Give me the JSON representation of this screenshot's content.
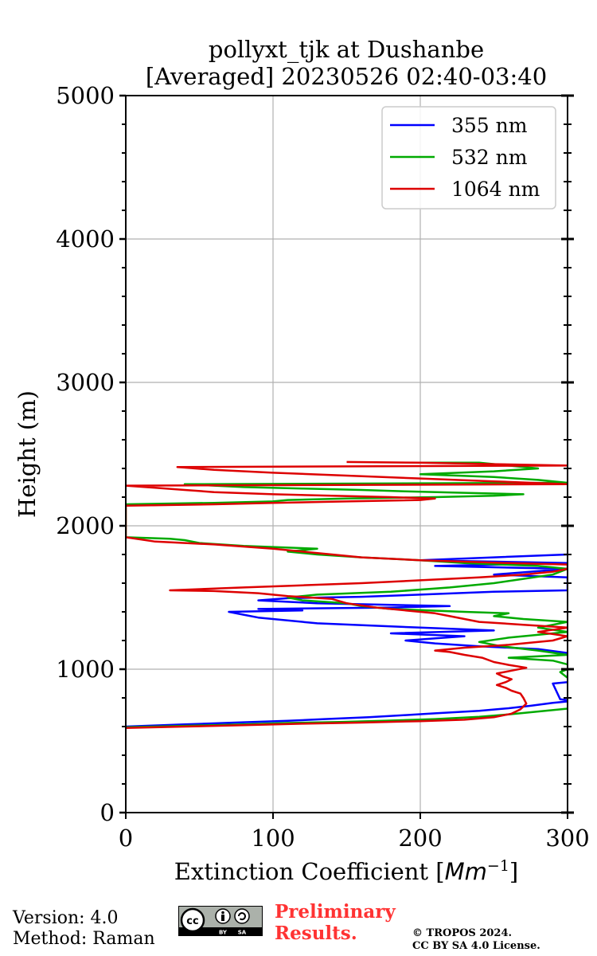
{
  "chart_data": {
    "type": "line",
    "title_line1": "pollyxt_tjk at Dushanbe",
    "title_line2": "[Averaged] 20230526 02:40-03:40",
    "xlabel_main": "Extinction Coefficient [",
    "xlabel_unit": "Mm",
    "xlabel_exp": "−1",
    "xlabel_close": "]",
    "ylabel": "Height (m)",
    "xlim": [
      0,
      300
    ],
    "ylim": [
      0,
      5000
    ],
    "xticks": [
      0,
      100,
      200,
      300
    ],
    "yticks": [
      0,
      1000,
      2000,
      3000,
      4000,
      5000
    ],
    "grid": true,
    "legend_position": "top-right",
    "series": [
      {
        "name": "355 nm",
        "color": "#0000ff",
        "points": [
          [
            0,
            600
          ],
          [
            40,
            615
          ],
          [
            80,
            630
          ],
          [
            110,
            640
          ],
          [
            135,
            652
          ],
          [
            165,
            665
          ],
          [
            190,
            680
          ],
          [
            210,
            692
          ],
          [
            240,
            710
          ],
          [
            260,
            728
          ],
          [
            275,
            745
          ],
          [
            290,
            765
          ],
          [
            305,
            780
          ],
          [
            295,
            790
          ],
          [
            290,
            900
          ],
          [
            310,
            920
          ],
          [
            300,
            960
          ],
          [
            310,
            1000
          ],
          [
            300,
            1050
          ],
          [
            310,
            1100
          ],
          [
            280,
            1140
          ],
          [
            240,
            1160
          ],
          [
            210,
            1180
          ],
          [
            190,
            1200
          ],
          [
            230,
            1230
          ],
          [
            180,
            1250
          ],
          [
            250,
            1270
          ],
          [
            200,
            1290
          ],
          [
            130,
            1320
          ],
          [
            90,
            1360
          ],
          [
            80,
            1380
          ],
          [
            70,
            1400
          ],
          [
            120,
            1410
          ],
          [
            90,
            1420
          ],
          [
            180,
            1430
          ],
          [
            220,
            1440
          ],
          [
            130,
            1460
          ],
          [
            90,
            1480
          ],
          [
            110,
            1495
          ],
          [
            160,
            1505
          ],
          [
            200,
            1520
          ],
          [
            250,
            1540
          ],
          [
            300,
            1550
          ],
          [
            300,
            1640
          ],
          [
            250,
            1660
          ],
          [
            300,
            1700
          ],
          [
            210,
            1720
          ],
          [
            300,
            1740
          ],
          [
            200,
            1760
          ],
          [
            250,
            1780
          ],
          [
            300,
            1800
          ]
        ]
      },
      {
        "name": "532 nm",
        "color": "#00aa00",
        "points": [
          [
            0,
            595
          ],
          [
            40,
            605
          ],
          [
            80,
            615
          ],
          [
            110,
            625
          ],
          [
            145,
            632
          ],
          [
            175,
            640
          ],
          [
            210,
            652
          ],
          [
            240,
            668
          ],
          [
            260,
            685
          ],
          [
            280,
            705
          ],
          [
            300,
            725
          ],
          [
            310,
            750
          ],
          [
            300,
            940
          ],
          [
            295,
            980
          ],
          [
            305,
            1020
          ],
          [
            290,
            1060
          ],
          [
            260,
            1080
          ],
          [
            300,
            1100
          ],
          [
            280,
            1130
          ],
          [
            255,
            1160
          ],
          [
            240,
            1190
          ],
          [
            260,
            1220
          ],
          [
            300,
            1260
          ],
          [
            280,
            1290
          ],
          [
            300,
            1330
          ],
          [
            270,
            1350
          ],
          [
            250,
            1370
          ],
          [
            260,
            1390
          ],
          [
            230,
            1400
          ],
          [
            180,
            1420
          ],
          [
            160,
            1440
          ],
          [
            150,
            1460
          ],
          [
            120,
            1480
          ],
          [
            110,
            1500
          ],
          [
            130,
            1520
          ],
          [
            180,
            1540
          ],
          [
            220,
            1570
          ],
          [
            250,
            1600
          ],
          [
            270,
            1630
          ],
          [
            290,
            1660
          ],
          [
            300,
            1700
          ],
          [
            280,
            1720
          ],
          [
            230,
            1740
          ],
          [
            200,
            1760
          ],
          [
            160,
            1780
          ],
          [
            130,
            1800
          ],
          [
            110,
            1820
          ],
          [
            130,
            1840
          ],
          [
            80,
            1860
          ],
          [
            50,
            1880
          ],
          [
            40,
            1900
          ],
          [
            30,
            1910
          ],
          [
            0,
            1920
          ],
          [
            0,
            2150
          ],
          [
            60,
            2160
          ],
          [
            100,
            2170
          ],
          [
            110,
            2180
          ],
          [
            150,
            2190
          ],
          [
            210,
            2200
          ],
          [
            250,
            2210
          ],
          [
            270,
            2220
          ],
          [
            230,
            2230
          ],
          [
            190,
            2240
          ],
          [
            160,
            2250
          ],
          [
            120,
            2260
          ],
          [
            80,
            2270
          ],
          [
            60,
            2280
          ],
          [
            40,
            2290
          ],
          [
            300,
            2300
          ],
          [
            280,
            2320
          ],
          [
            250,
            2340
          ],
          [
            200,
            2360
          ],
          [
            250,
            2380
          ],
          [
            280,
            2400
          ],
          [
            260,
            2420
          ],
          [
            240,
            2440
          ],
          [
            200,
            2440
          ]
        ]
      },
      {
        "name": "1064 nm",
        "color": "#dd0000",
        "points": [
          [
            0,
            590
          ],
          [
            40,
            600
          ],
          [
            80,
            610
          ],
          [
            120,
            620
          ],
          [
            160,
            628
          ],
          [
            200,
            638
          ],
          [
            230,
            648
          ],
          [
            250,
            665
          ],
          [
            262,
            690
          ],
          [
            268,
            720
          ],
          [
            272,
            760
          ],
          [
            270,
            800
          ],
          [
            268,
            830
          ],
          [
            262,
            850
          ],
          [
            258,
            870
          ],
          [
            252,
            890
          ],
          [
            258,
            910
          ],
          [
            262,
            930
          ],
          [
            256,
            950
          ],
          [
            252,
            970
          ],
          [
            262,
            990
          ],
          [
            272,
            1010
          ],
          [
            260,
            1030
          ],
          [
            250,
            1050
          ],
          [
            242,
            1080
          ],
          [
            230,
            1100
          ],
          [
            220,
            1120
          ],
          [
            210,
            1130
          ],
          [
            230,
            1150
          ],
          [
            260,
            1170
          ],
          [
            290,
            1200
          ],
          [
            300,
            1230
          ],
          [
            280,
            1260
          ],
          [
            300,
            1290
          ],
          [
            270,
            1310
          ],
          [
            240,
            1330
          ],
          [
            230,
            1350
          ],
          [
            220,
            1370
          ],
          [
            210,
            1390
          ],
          [
            190,
            1410
          ],
          [
            170,
            1430
          ],
          [
            150,
            1460
          ],
          [
            140,
            1490
          ],
          [
            110,
            1510
          ],
          [
            90,
            1530
          ],
          [
            60,
            1545
          ],
          [
            30,
            1550
          ],
          [
            80,
            1570
          ],
          [
            120,
            1585
          ],
          [
            160,
            1600
          ],
          [
            200,
            1620
          ],
          [
            240,
            1640
          ],
          [
            270,
            1660
          ],
          [
            290,
            1680
          ],
          [
            300,
            1700
          ],
          [
            300,
            1730
          ],
          [
            260,
            1740
          ],
          [
            230,
            1750
          ],
          [
            200,
            1760
          ],
          [
            160,
            1780
          ],
          [
            140,
            1800
          ],
          [
            120,
            1820
          ],
          [
            100,
            1840
          ],
          [
            60,
            1870
          ],
          [
            20,
            1890
          ],
          [
            0,
            1920
          ],
          [
            0,
            2140
          ],
          [
            60,
            2150
          ],
          [
            100,
            2160
          ],
          [
            150,
            2170
          ],
          [
            200,
            2180
          ],
          [
            210,
            2190
          ],
          [
            180,
            2200
          ],
          [
            140,
            2210
          ],
          [
            100,
            2220
          ],
          [
            60,
            2235
          ],
          [
            40,
            2250
          ],
          [
            20,
            2265
          ],
          [
            0,
            2280
          ],
          [
            300,
            2290
          ],
          [
            250,
            2310
          ],
          [
            200,
            2330
          ],
          [
            150,
            2350
          ],
          [
            100,
            2370
          ],
          [
            60,
            2390
          ],
          [
            35,
            2410
          ],
          [
            300,
            2420
          ],
          [
            250,
            2430
          ],
          [
            200,
            2440
          ],
          [
            150,
            2445
          ]
        ]
      }
    ]
  },
  "footer": {
    "version": "Version: 4.0",
    "method": "Method: Raman",
    "preliminary_line1": "Preliminary",
    "preliminary_line2": "Results.",
    "copyright_line1": "© TROPOS 2024.",
    "copyright_line2": "CC BY SA 4.0 License."
  },
  "badge": {
    "cc": "cc",
    "by": "BY",
    "sa": "SA"
  }
}
